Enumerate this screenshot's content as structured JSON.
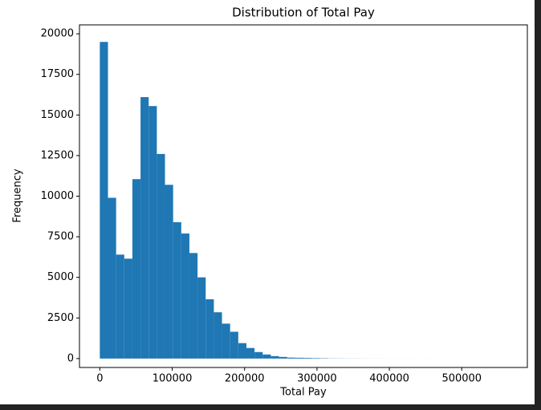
{
  "chart_data": {
    "type": "histogram",
    "title": "Distribution of Total Pay",
    "x_label": "Total Pay",
    "y_label": "Frequency",
    "bins": [
      0,
      11250,
      22500,
      33750,
      45000,
      56250,
      67500,
      78750,
      90000,
      101250,
      112500,
      123750,
      135000,
      146250,
      157500,
      168750,
      180000,
      191250,
      202500,
      213750,
      225000,
      236250,
      247500,
      258750,
      270000,
      281250,
      292500,
      303750,
      315000,
      326250,
      337500,
      348750,
      360000,
      371250,
      382500,
      393750,
      405000,
      416250,
      427500,
      438750,
      450000,
      461250,
      472500,
      483750,
      495000,
      506250,
      517500,
      528750,
      540000,
      551250,
      562500
    ],
    "values": [
      19500,
      9900,
      6400,
      6150,
      11050,
      16100,
      15550,
      12600,
      10700,
      8400,
      7700,
      6500,
      5000,
      3650,
      2850,
      2150,
      1650,
      950,
      650,
      400,
      250,
      150,
      100,
      60,
      50,
      40,
      30,
      20,
      10,
      8,
      5,
      5,
      3,
      2,
      2,
      1,
      1,
      1,
      1,
      0,
      1,
      0,
      0,
      0,
      0,
      0,
      0,
      1,
      0,
      1
    ],
    "color": "#1f77b4",
    "xlim": [
      -28125,
      590625
    ],
    "ylim": [
      -550,
      20550
    ],
    "xticks": [
      0,
      100000,
      200000,
      300000,
      400000,
      500000
    ],
    "yticks": [
      0,
      2500,
      5000,
      7500,
      10000,
      12500,
      15000,
      17500,
      20000
    ]
  }
}
